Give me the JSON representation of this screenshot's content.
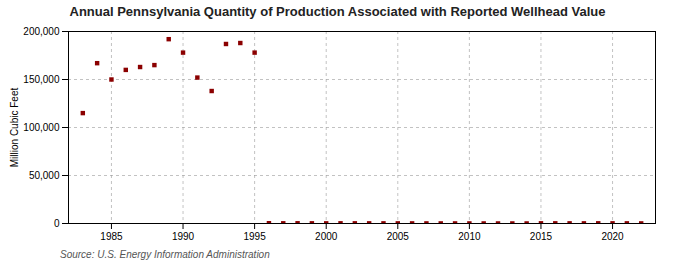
{
  "chart_data": {
    "type": "scatter",
    "title": "Annual Pennsylvania Quantity of Production Associated with Reported Wellhead Value",
    "ylabel": "Million Cubic Feet",
    "source": "Source: U.S. Energy Information Administration",
    "x": [
      1983,
      1984,
      1985,
      1986,
      1987,
      1988,
      1989,
      1990,
      1991,
      1992,
      1993,
      1994,
      1995,
      1996,
      1997,
      1998,
      1999,
      2000,
      2001,
      2002,
      2003,
      2004,
      2005,
      2006,
      2007,
      2008,
      2009,
      2010,
      2011,
      2012,
      2013,
      2014,
      2015,
      2016,
      2017,
      2018,
      2019,
      2020,
      2021,
      2022
    ],
    "values": [
      115000,
      167000,
      150000,
      160000,
      163000,
      165000,
      192000,
      178000,
      152000,
      138000,
      187000,
      188000,
      178000,
      300,
      200,
      250,
      180,
      150,
      200,
      180,
      160,
      150,
      130,
      110,
      100,
      90,
      80,
      70,
      60,
      50,
      50,
      50,
      200,
      180,
      160,
      150,
      200,
      180,
      160,
      100
    ],
    "color": "#8b0000",
    "marker": "square",
    "xlim": [
      1982,
      2023
    ],
    "xticks": [
      1985,
      1990,
      1995,
      2000,
      2005,
      2010,
      2015,
      2020
    ],
    "ylim": [
      0,
      200000
    ],
    "yticks": [
      0,
      {
        "value": 50000,
        "label": "50,000"
      },
      {
        "value": 100000,
        "label": "100,000"
      },
      {
        "value": 150000,
        "label": "150,000"
      },
      {
        "value": 200000,
        "label": "200,000"
      }
    ],
    "grid": true
  }
}
